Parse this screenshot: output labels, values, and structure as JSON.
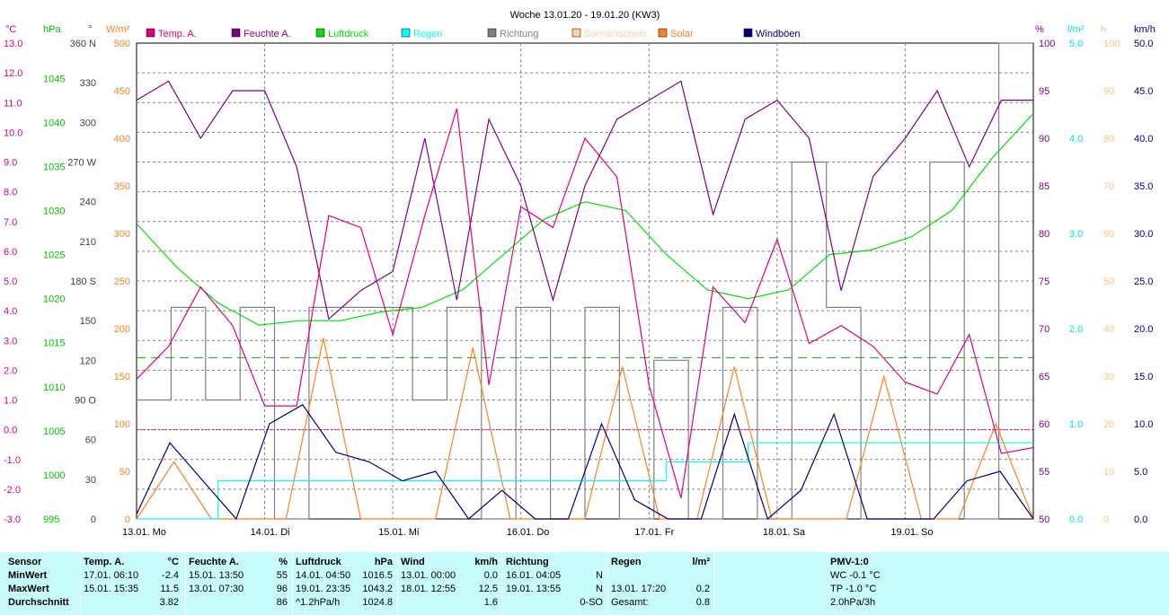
{
  "chart_data": {
    "type": "line",
    "title": "Woche 13.01.20 - 19.01.20 (KW3)",
    "x_day_labels": [
      "13.01. Mo",
      "14.01. Di",
      "15.01. Mi",
      "16.01. Do",
      "17.01. Fr",
      "18.01. Sa",
      "19.01. So"
    ],
    "legend": [
      {
        "label": "Temp. A.",
        "color": "#e0007f"
      },
      {
        "label": "Feuchte A.",
        "color": "#7f007f"
      },
      {
        "label": "Luftdruck",
        "color": "#00e000"
      },
      {
        "label": "Regen",
        "color": "#00ffff"
      },
      {
        "label": "Richtung",
        "color": "#808080"
      },
      {
        "label": "Sonnenschein",
        "color": "#ffd0a0"
      },
      {
        "label": "Solar",
        "color": "#ff8020"
      },
      {
        "label": "Windböen",
        "color": "#000080"
      }
    ],
    "axes": [
      {
        "unit": "°C",
        "color": "#e0007f",
        "ticks": [
          "13.0",
          "12.0",
          "11.0",
          "10.0",
          "9.0",
          "8.0",
          "7.0",
          "6.0",
          "5.0",
          "4.0",
          "3.0",
          "2.0",
          "1.0",
          "0.0",
          "-1.0",
          "-2.0",
          "-3.0"
        ]
      },
      {
        "unit": "hPa",
        "color": "#00c000",
        "ticks": [
          "1045",
          "1040",
          "1035",
          "1030",
          "1025",
          "1020",
          "1015",
          "1010",
          "1005",
          "1000",
          "995"
        ]
      },
      {
        "unit": "°",
        "color": "#404040",
        "ticks": [
          "360 N",
          "330",
          "300",
          "270 W",
          "240",
          "210",
          "180 S",
          "150",
          "120",
          "90 O",
          "60",
          "30",
          "0"
        ]
      },
      {
        "unit": "W/m²",
        "color": "#ff8020",
        "ticks": [
          "500",
          "450",
          "400",
          "350",
          "300",
          "250",
          "200",
          "150",
          "100",
          "50",
          "0"
        ]
      },
      {
        "unit": "%",
        "color": "#7f007f",
        "ticks": [
          "100",
          "95",
          "90",
          "85",
          "80",
          "75",
          "70",
          "65",
          "60",
          "55",
          "50"
        ]
      },
      {
        "unit": "l/m²",
        "color": "#00e0e0",
        "ticks": [
          "5.0",
          "4.0",
          "3.0",
          "2.0",
          "1.0",
          "0.0"
        ]
      },
      {
        "unit": "h",
        "color": "#ffc080",
        "ticks": [
          "100",
          "90",
          "80",
          "70",
          "60",
          "50",
          "40",
          "30",
          "20",
          "10",
          "0"
        ]
      },
      {
        "unit": "km/h",
        "color": "#000080",
        "ticks": [
          "50.0",
          "45.0",
          "40.0",
          "35.0",
          "30.0",
          "25.0",
          "20.0",
          "15.0",
          "10.0",
          "5.0",
          "0.0"
        ]
      }
    ],
    "x_hours": [
      0,
      6,
      12,
      18,
      24,
      30,
      36,
      42,
      48,
      54,
      60,
      66,
      72,
      78,
      84,
      90,
      96,
      102,
      108,
      114,
      120,
      126,
      132,
      138,
      144,
      150,
      156,
      162,
      168
    ],
    "series": [
      {
        "name": "Temp. A.",
        "axis": "°C",
        "values": [
          1.7,
          2.8,
          4.8,
          3.5,
          0.8,
          0.8,
          7.2,
          6.8,
          3.2,
          7.2,
          10.8,
          1.5,
          7.5,
          6.8,
          9.8,
          8.5,
          1.5,
          -2.3,
          4.8,
          3.6,
          6.4,
          2.9,
          3.5,
          2.8,
          1.6,
          1.2,
          3.2,
          -0.8,
          -0.6
        ]
      },
      {
        "name": "Feuchte A.",
        "axis": "%",
        "values": [
          94,
          96,
          90,
          95,
          95,
          87,
          71,
          74,
          76,
          90,
          73,
          92,
          85,
          73,
          85,
          92,
          94,
          96,
          82,
          92,
          94,
          90,
          74,
          86,
          90,
          95,
          87,
          94,
          94
        ]
      },
      {
        "name": "Luftdruck",
        "axis": "hPa",
        "values": [
          1028.5,
          1023.5,
          1019.5,
          1017,
          1017.5,
          1017.5,
          1018.5,
          1019,
          1021,
          1025,
          1029,
          1031,
          1030,
          1025,
          1021,
          1020,
          1021,
          1025,
          1025.5,
          1027,
          1030,
          1036,
          1041
        ]
      },
      {
        "name": "Regen",
        "axis": "l/m²",
        "values": [
          0,
          0,
          0.4,
          0.4,
          0.4,
          0.4,
          0.4,
          0.4,
          0.4,
          0.4,
          0.4,
          0.4,
          0.4,
          0.6,
          0.6,
          0.8,
          0.8,
          0.8,
          0.8,
          0.8,
          0.8,
          0.8
        ]
      },
      {
        "name": "Solar",
        "axis": "W/m²",
        "values": [
          0,
          60,
          0,
          0,
          0,
          190,
          0,
          0,
          0,
          180,
          0,
          0,
          0,
          160,
          0,
          0,
          160,
          0,
          0,
          0,
          150,
          0,
          0,
          100,
          0
        ]
      },
      {
        "name": "Windböen",
        "axis": "km/h",
        "values": [
          0.5,
          8,
          4,
          0,
          10,
          12,
          7,
          6,
          4,
          5,
          0,
          3,
          0,
          0,
          10,
          2,
          0,
          0,
          11,
          0,
          3,
          11,
          0,
          0,
          0,
          4,
          5,
          0
        ]
      },
      {
        "name": "Richtung",
        "axis": "°",
        "values": [
          90,
          160,
          90,
          160,
          0,
          160,
          160,
          160,
          90,
          160,
          0,
          160,
          0,
          160,
          0,
          120,
          0,
          160,
          0,
          270,
          160,
          0,
          0,
          270,
          0,
          360
        ]
      }
    ],
    "reference_line": {
      "axis": "°C",
      "value": 0.0,
      "color": "#e0007f"
    },
    "dashed_line": {
      "axis": "°",
      "value": 122,
      "color": "#00b000"
    }
  },
  "stats": {
    "sensor": {
      "header": "Sensor",
      "rows": [
        "MinWert",
        "MaxWert",
        "Durchschnitt"
      ]
    },
    "temp": {
      "header": "Temp. A.",
      "unit": "°C",
      "rows": [
        [
          "17.01.  06:10",
          "-2.4"
        ],
        [
          "15.01.  15:35",
          "11.5"
        ],
        [
          "",
          "3.82"
        ]
      ]
    },
    "feuchte": {
      "header": "Feuchte A.",
      "unit": "%",
      "rows": [
        [
          "15.01.  13:50",
          "55"
        ],
        [
          "13.01.  07:30",
          "96"
        ],
        [
          "",
          "86"
        ]
      ]
    },
    "luftdruck": {
      "header": "Luftdruck",
      "unit": "hPa",
      "rows": [
        [
          "14.01.  04:50",
          "1016.5"
        ],
        [
          "19.01.  23:35",
          "1043.2"
        ],
        [
          "^1.2hPa/h",
          "1024.8"
        ]
      ]
    },
    "wind": {
      "header": "Wind",
      "unit": "km/h",
      "rows": [
        [
          "13.01.  00:00",
          "0.0"
        ],
        [
          "18.01.  12:55",
          "12.5"
        ],
        [
          "",
          "1.6"
        ]
      ]
    },
    "richtung": {
      "header": "Richtung",
      "rows": [
        [
          "16.01.  04:05",
          "N"
        ],
        [
          "19.01.  13:55",
          "N"
        ],
        [
          "",
          "0-SO"
        ]
      ]
    },
    "regen": {
      "header": "Regen",
      "unit": "l/m²",
      "rows": [
        [
          "",
          ""
        ],
        [
          "13.01.  17:20",
          "0.2"
        ],
        [
          "Gesamt:",
          "0.8"
        ]
      ]
    },
    "pmv": {
      "header": "PMV-1:0",
      "rows": [
        "WC -0.1 °C",
        "TP -1.0 °C",
        "2.0hPa/3h"
      ]
    }
  }
}
